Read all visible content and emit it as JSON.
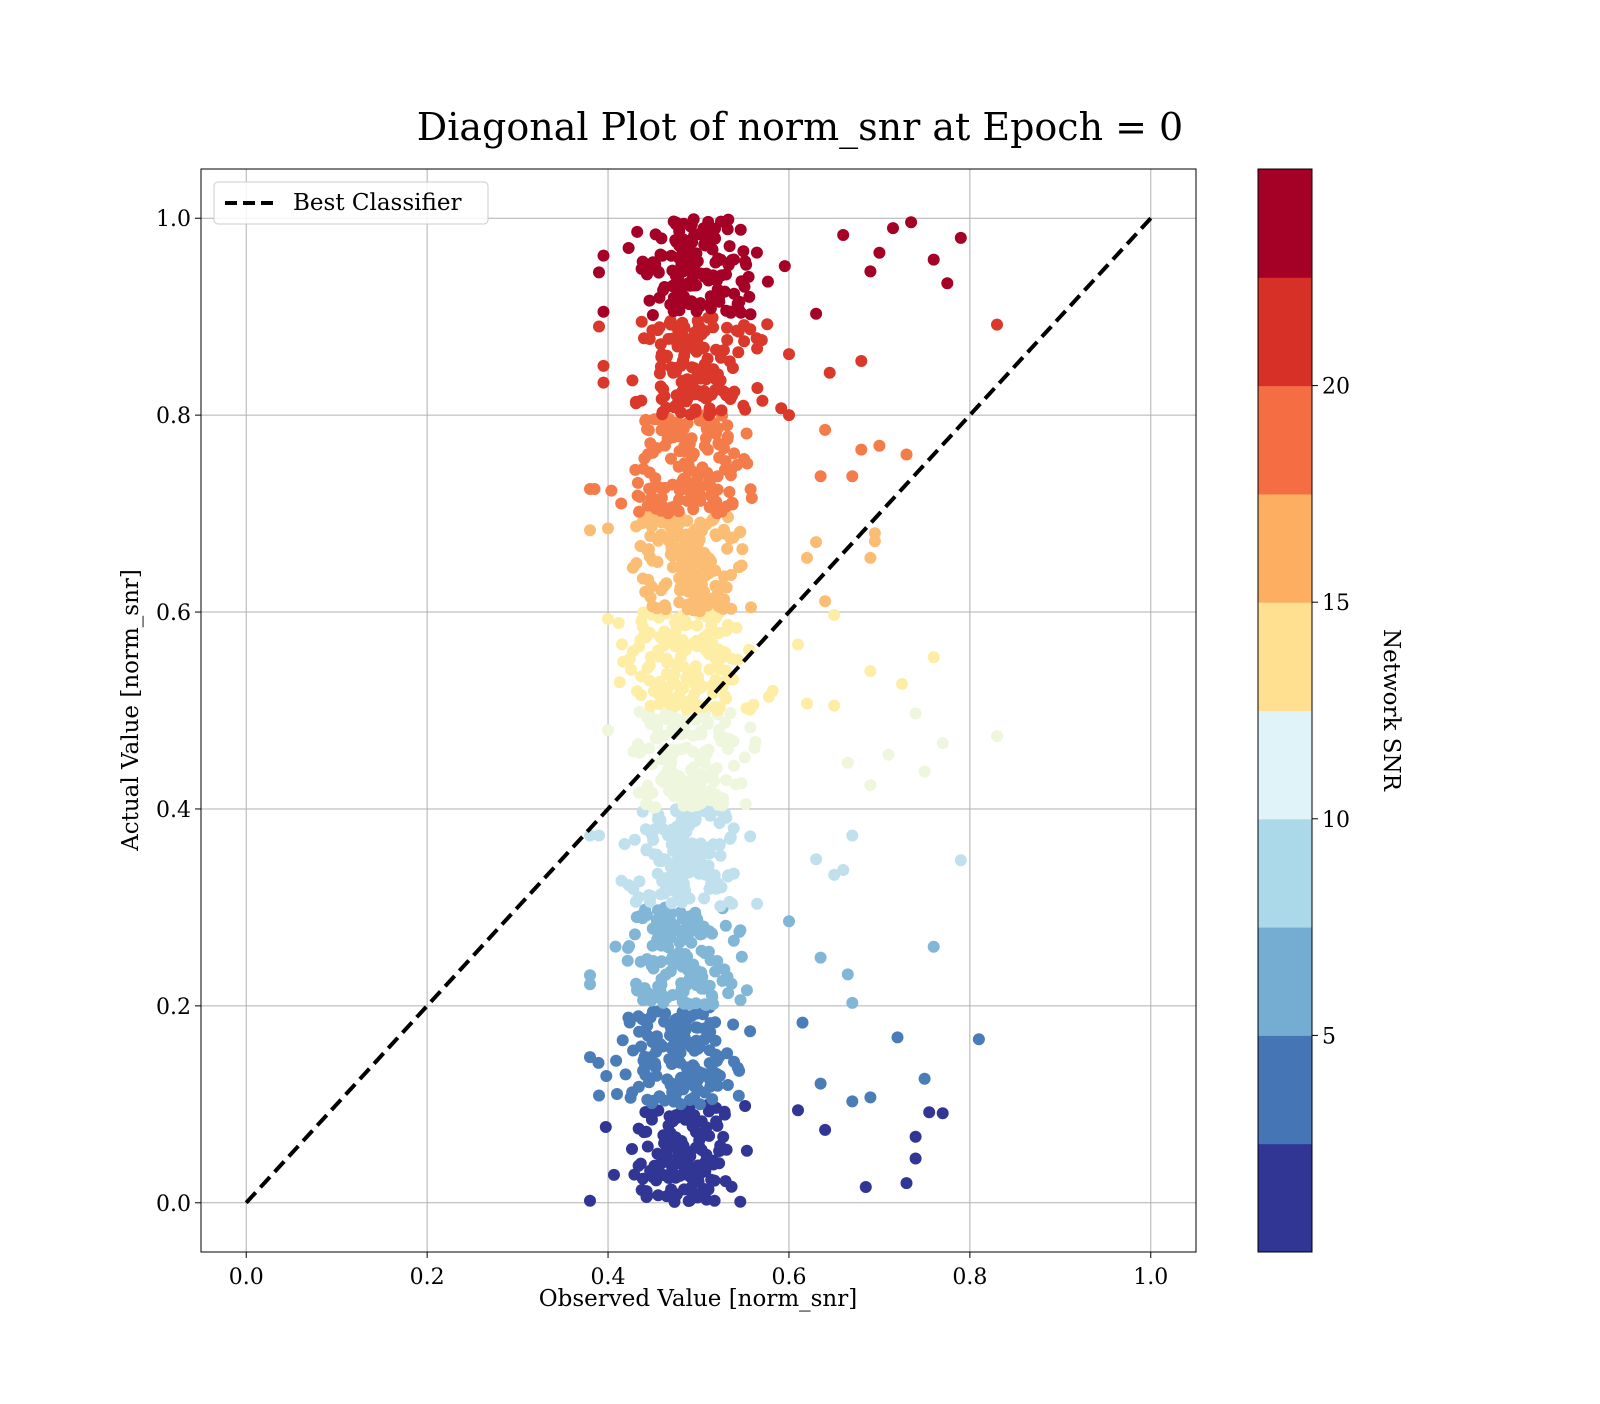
{
  "chart_data": {
    "type": "scatter",
    "title": "Diagonal Plot of norm_snr at Epoch = 0",
    "xlabel": "Observed Value [norm_snr]",
    "ylabel": "Actual Value [norm_snr]",
    "xlim": [
      -0.05,
      1.05
    ],
    "ylim": [
      -0.05,
      1.05
    ],
    "xticks": [
      "0.0",
      "0.2",
      "0.4",
      "0.6",
      "0.8",
      "1.0"
    ],
    "yticks": [
      "0.0",
      "0.2",
      "0.4",
      "0.6",
      "0.8",
      "1.0"
    ],
    "grid": true,
    "legend": {
      "position": "upper-left",
      "entries": [
        {
          "label": "Best Classifier",
          "style": "dashed",
          "color": "#000000"
        }
      ]
    },
    "reference_line": {
      "name": "Best Classifier",
      "x": [
        0.0,
        1.0
      ],
      "y": [
        0.0,
        1.0
      ],
      "style": "dashed",
      "color": "#000000"
    },
    "colorbar": {
      "label": "Network SNR",
      "range": [
        0,
        25
      ],
      "ticks": [
        "5",
        "10",
        "15",
        "20"
      ],
      "colors": [
        "#313695",
        "#4575b4",
        "#74add1",
        "#abd9e9",
        "#e0f3f8",
        "#fee090",
        "#fdae61",
        "#f46d43",
        "#d73027",
        "#a50026"
      ]
    },
    "band_colors": [
      "#313695",
      "#4a7cb8",
      "#82b6d6",
      "#bfe0ec",
      "#eef6de",
      "#fdeda5",
      "#fbbd74",
      "#f47c4a",
      "#d9382a",
      "#a50026"
    ],
    "series": [
      {
        "band": 0,
        "y_range": [
          0.0,
          0.1
        ],
        "x_center": 0.48,
        "x_spread": 0.045,
        "count": 150,
        "outliers": [
          [
            0.38,
            0.002
          ],
          [
            0.685,
            0.016
          ],
          [
            0.73,
            0.02
          ],
          [
            0.74,
            0.045
          ],
          [
            0.74,
            0.067
          ],
          [
            0.755,
            0.092
          ],
          [
            0.77,
            0.091
          ],
          [
            0.64,
            0.074
          ],
          [
            0.61,
            0.094
          ]
        ]
      },
      {
        "band": 1,
        "y_range": [
          0.1,
          0.2
        ],
        "x_center": 0.48,
        "x_spread": 0.045,
        "count": 150,
        "outliers": [
          [
            0.38,
            0.148
          ],
          [
            0.39,
            0.109
          ],
          [
            0.67,
            0.103
          ],
          [
            0.69,
            0.107
          ],
          [
            0.72,
            0.168
          ],
          [
            0.75,
            0.126
          ],
          [
            0.81,
            0.166
          ],
          [
            0.635,
            0.121
          ],
          [
            0.615,
            0.183
          ]
        ]
      },
      {
        "band": 2,
        "y_range": [
          0.2,
          0.3
        ],
        "x_center": 0.48,
        "x_spread": 0.045,
        "count": 150,
        "outliers": [
          [
            0.38,
            0.222
          ],
          [
            0.38,
            0.231
          ],
          [
            0.665,
            0.232
          ],
          [
            0.67,
            0.203
          ],
          [
            0.76,
            0.26
          ],
          [
            0.635,
            0.249
          ],
          [
            0.6,
            0.286
          ]
        ]
      },
      {
        "band": 3,
        "y_range": [
          0.3,
          0.4
        ],
        "x_center": 0.48,
        "x_spread": 0.045,
        "count": 150,
        "outliers": [
          [
            0.38,
            0.373
          ],
          [
            0.39,
            0.373
          ],
          [
            0.79,
            0.348
          ],
          [
            0.67,
            0.373
          ],
          [
            0.66,
            0.338
          ],
          [
            0.65,
            0.333
          ],
          [
            0.63,
            0.349
          ]
        ]
      },
      {
        "band": 4,
        "y_range": [
          0.4,
          0.5
        ],
        "x_center": 0.49,
        "x_spread": 0.045,
        "count": 150,
        "outliers": [
          [
            0.4,
            0.48
          ],
          [
            0.83,
            0.474
          ],
          [
            0.77,
            0.467
          ],
          [
            0.74,
            0.497
          ],
          [
            0.75,
            0.438
          ],
          [
            0.71,
            0.455
          ],
          [
            0.69,
            0.424
          ],
          [
            0.665,
            0.447
          ]
        ]
      },
      {
        "band": 5,
        "y_range": [
          0.5,
          0.6
        ],
        "x_center": 0.49,
        "x_spread": 0.045,
        "count": 150,
        "outliers": [
          [
            0.4,
            0.593
          ],
          [
            0.76,
            0.554
          ],
          [
            0.725,
            0.527
          ],
          [
            0.69,
            0.54
          ],
          [
            0.65,
            0.505
          ],
          [
            0.62,
            0.507
          ],
          [
            0.61,
            0.567
          ],
          [
            0.65,
            0.597
          ]
        ]
      },
      {
        "band": 6,
        "y_range": [
          0.6,
          0.7
        ],
        "x_center": 0.49,
        "x_spread": 0.045,
        "count": 150,
        "outliers": [
          [
            0.38,
            0.683
          ],
          [
            0.4,
            0.685
          ],
          [
            0.69,
            0.655
          ],
          [
            0.695,
            0.672
          ],
          [
            0.695,
            0.68
          ],
          [
            0.64,
            0.611
          ],
          [
            0.63,
            0.671
          ],
          [
            0.62,
            0.655
          ]
        ]
      },
      {
        "band": 7,
        "y_range": [
          0.7,
          0.8
        ],
        "x_center": 0.49,
        "x_spread": 0.045,
        "count": 150,
        "outliers": [
          [
            0.38,
            0.725
          ],
          [
            0.385,
            0.725
          ],
          [
            0.73,
            0.76
          ],
          [
            0.7,
            0.769
          ],
          [
            0.68,
            0.765
          ],
          [
            0.67,
            0.738
          ],
          [
            0.64,
            0.785
          ],
          [
            0.635,
            0.738
          ]
        ]
      },
      {
        "band": 8,
        "y_range": [
          0.8,
          0.9
        ],
        "x_center": 0.5,
        "x_spread": 0.045,
        "count": 150,
        "outliers": [
          [
            0.39,
            0.89
          ],
          [
            0.395,
            0.85
          ],
          [
            0.395,
            0.833
          ],
          [
            0.83,
            0.892
          ],
          [
            0.68,
            0.855
          ],
          [
            0.645,
            0.843
          ],
          [
            0.6,
            0.8
          ],
          [
            0.6,
            0.862
          ]
        ]
      },
      {
        "band": 9,
        "y_range": [
          0.9,
          1.0
        ],
        "x_center": 0.5,
        "x_spread": 0.045,
        "count": 150,
        "outliers": [
          [
            0.39,
            0.945
          ],
          [
            0.395,
            0.962
          ],
          [
            0.395,
            0.905
          ],
          [
            0.79,
            0.98
          ],
          [
            0.775,
            0.934
          ],
          [
            0.76,
            0.958
          ],
          [
            0.735,
            0.996
          ],
          [
            0.715,
            0.99
          ],
          [
            0.7,
            0.965
          ],
          [
            0.69,
            0.946
          ],
          [
            0.66,
            0.983
          ],
          [
            0.63,
            0.903
          ]
        ]
      }
    ]
  }
}
